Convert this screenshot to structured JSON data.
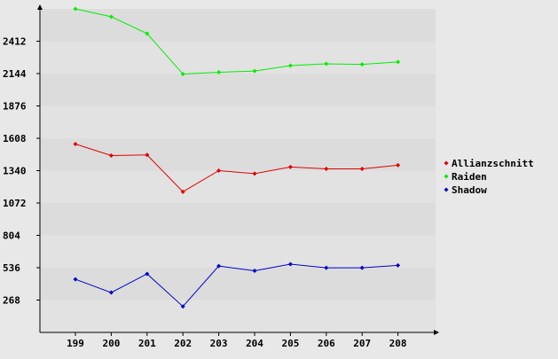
{
  "chart_data": {
    "type": "line",
    "title": "",
    "xlabel": "",
    "ylabel": "",
    "categories": [
      "199",
      "200",
      "201",
      "202",
      "203",
      "204",
      "205",
      "206",
      "207",
      "208"
    ],
    "yticks": [
      268,
      536,
      804,
      1072,
      1340,
      1608,
      1876,
      2144,
      2412
    ],
    "ylim": [
      0,
      2680
    ],
    "grid": "horizontal alternating bands",
    "legend_position": "right",
    "series": [
      {
        "name": "Allianzschnitt",
        "color": "#e00000",
        "values": [
          1560,
          1465,
          1470,
          1165,
          1340,
          1315,
          1370,
          1355,
          1355,
          1385
        ]
      },
      {
        "name": "Raiden",
        "color": "#00ee00",
        "values": [
          2680,
          2615,
          2475,
          2140,
          2155,
          2165,
          2210,
          2225,
          2220,
          2240
        ]
      },
      {
        "name": "Shadow",
        "color": "#0000cc",
        "values": [
          440,
          330,
          485,
          215,
          550,
          510,
          565,
          535,
          535,
          555
        ]
      }
    ]
  }
}
